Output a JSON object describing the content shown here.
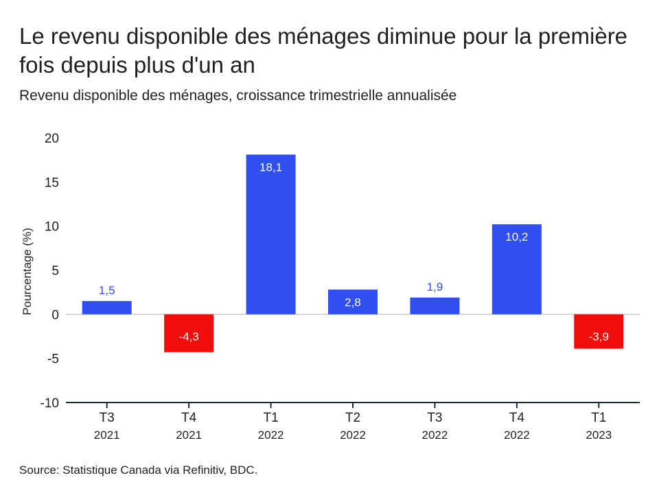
{
  "title": "Le revenu disponible des ménages diminue pour la première fois depuis plus d'un an",
  "subtitle": "Revenu disponible des ménages, croissance trimestrielle annualisée",
  "source": "Source: Statistique Canada via Refinitiv, BDC.",
  "colors": {
    "positive": "#2f4ff0",
    "negative": "#f20d0d",
    "axis": "#1a2b3c",
    "zero_line": "#c8c8c8"
  },
  "chart_data": {
    "type": "bar",
    "ylabel": "Pourcentage (%)",
    "ylim": [
      -10,
      20
    ],
    "yticks": [
      "-10",
      "-5",
      "0",
      "5",
      "10",
      "15",
      "20"
    ],
    "grid": false,
    "categories": [
      {
        "quarter": "T3",
        "year": "2021"
      },
      {
        "quarter": "T4",
        "year": "2021"
      },
      {
        "quarter": "T1",
        "year": "2022"
      },
      {
        "quarter": "T2",
        "year": "2022"
      },
      {
        "quarter": "T3",
        "year": "2022"
      },
      {
        "quarter": "T4",
        "year": "2022"
      },
      {
        "quarter": "T1",
        "year": "2023"
      }
    ],
    "values": [
      1.5,
      -4.3,
      18.1,
      2.8,
      1.9,
      10.2,
      -3.9
    ],
    "labels": [
      "1,5",
      "-4,3",
      "18,1",
      "2,8",
      "1,9",
      "10,2",
      "-3,9"
    ]
  }
}
